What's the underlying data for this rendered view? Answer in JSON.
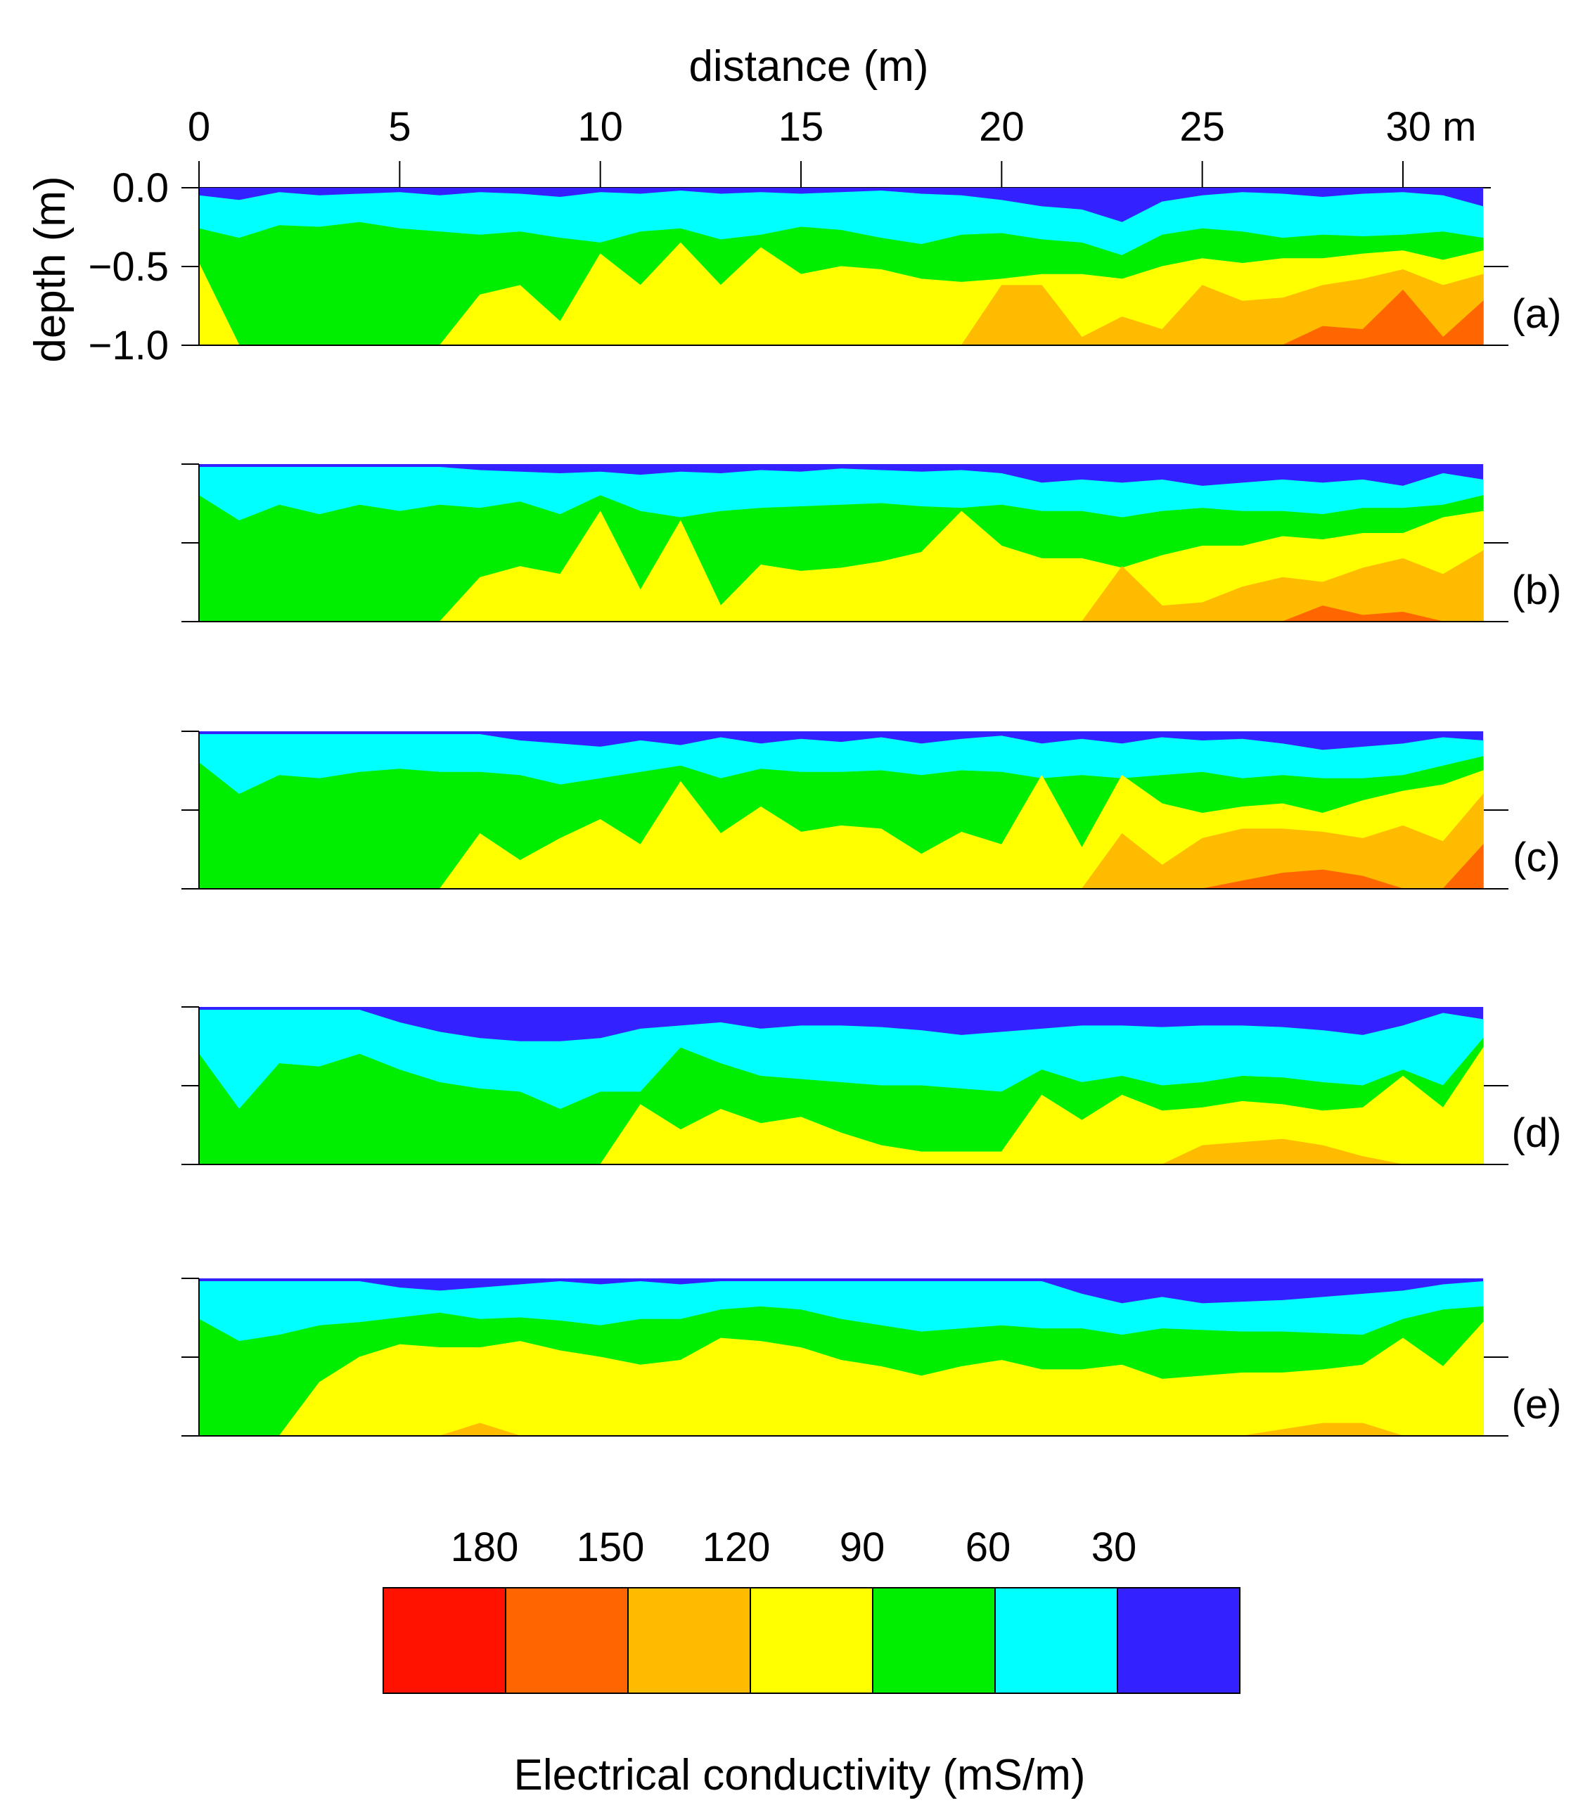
{
  "chart_data": {
    "type": "heatmap",
    "title": "",
    "xlabel": "distance (m)",
    "ylabel": "depth (m)",
    "xlim": [
      0,
      32
    ],
    "ylim": [
      -1.0,
      0.0
    ],
    "x_ticks": [
      0,
      5,
      10,
      15,
      20,
      25,
      30
    ],
    "x_tick_labels": [
      "0",
      "5",
      "10",
      "15",
      "20",
      "25",
      "30 m"
    ],
    "y_ticks": [
      0.0,
      -0.5,
      -1.0
    ],
    "y_tick_labels": [
      "0.0",
      "−0.5",
      "−1.0"
    ],
    "grid": false,
    "colorbar": {
      "label": "Electrical conductivity (mS/m)",
      "tick_labels": [
        "180",
        "150",
        "120",
        "90",
        "60",
        "30"
      ],
      "boundaries": [
        180,
        150,
        120,
        90,
        60,
        30
      ],
      "colors": [
        "#ff1200",
        "#ff6600",
        "#ffbb00",
        "#ffff00",
        "#00ee00",
        "#00ffff",
        "#3322ff"
      ]
    },
    "panels": [
      {
        "label": "(a)",
        "x": [
          0,
          1,
          2,
          3,
          4,
          5,
          6,
          7,
          8,
          9,
          10,
          11,
          12,
          13,
          14,
          15,
          16,
          17,
          18,
          19,
          20,
          21,
          22,
          23,
          24,
          25,
          26,
          27,
          28,
          29,
          30,
          31,
          32
        ],
        "boundaries_depth": {
          "30": [
            -0.05,
            -0.08,
            -0.03,
            -0.05,
            -0.04,
            -0.03,
            -0.05,
            -0.03,
            -0.04,
            -0.06,
            -0.03,
            -0.04,
            -0.02,
            -0.04,
            -0.03,
            -0.04,
            -0.03,
            -0.02,
            -0.04,
            -0.05,
            -0.08,
            -0.12,
            -0.14,
            -0.22,
            -0.09,
            -0.05,
            -0.03,
            -0.04,
            -0.06,
            -0.04,
            -0.03,
            -0.05,
            -0.12
          ],
          "60": [
            -0.26,
            -0.32,
            -0.24,
            -0.25,
            -0.22,
            -0.26,
            -0.28,
            -0.3,
            -0.28,
            -0.32,
            -0.35,
            -0.28,
            -0.26,
            -0.33,
            -0.3,
            -0.25,
            -0.27,
            -0.32,
            -0.36,
            -0.3,
            -0.29,
            -0.33,
            -0.35,
            -0.43,
            -0.3,
            -0.26,
            -0.28,
            -0.32,
            -0.3,
            -0.31,
            -0.3,
            -0.28,
            -0.32
          ],
          "90": [
            -0.48,
            -1.0,
            -1.0,
            -1.0,
            -1.0,
            -1.0,
            -1.0,
            -0.68,
            -0.62,
            -0.85,
            -0.42,
            -0.62,
            -0.35,
            -0.62,
            -0.38,
            -0.55,
            -0.5,
            -0.52,
            -0.58,
            -0.6,
            -0.58,
            -0.55,
            -0.55,
            -0.58,
            -0.5,
            -0.45,
            -0.48,
            -0.45,
            -0.45,
            -0.42,
            -0.4,
            -0.46,
            -0.4
          ],
          "120": [
            -1.0,
            -1.0,
            -1.0,
            -1.0,
            -1.0,
            -1.0,
            -1.0,
            -1.0,
            -1.0,
            -1.0,
            -1.0,
            -1.0,
            -1.0,
            -1.0,
            -1.0,
            -1.0,
            -1.0,
            -1.0,
            -1.0,
            -1.0,
            -0.62,
            -0.62,
            -0.95,
            -0.82,
            -0.9,
            -0.62,
            -0.72,
            -0.7,
            -0.62,
            -0.58,
            -0.52,
            -0.62,
            -0.55
          ],
          "150": [
            -1.0,
            -1.0,
            -1.0,
            -1.0,
            -1.0,
            -1.0,
            -1.0,
            -1.0,
            -1.0,
            -1.0,
            -1.0,
            -1.0,
            -1.0,
            -1.0,
            -1.0,
            -1.0,
            -1.0,
            -1.0,
            -1.0,
            -1.0,
            -1.0,
            -1.0,
            -1.0,
            -1.0,
            -1.0,
            -1.0,
            -1.0,
            -1.0,
            -0.88,
            -0.9,
            -0.65,
            -0.95,
            -0.72
          ]
        }
      },
      {
        "label": "(b)",
        "x": [
          0,
          1,
          2,
          3,
          4,
          5,
          6,
          7,
          8,
          9,
          10,
          11,
          12,
          13,
          14,
          15,
          16,
          17,
          18,
          19,
          20,
          21,
          22,
          23,
          24,
          25,
          26,
          27,
          28,
          29,
          30,
          31,
          32
        ],
        "boundaries_depth": {
          "30": [
            -0.02,
            -0.02,
            -0.02,
            -0.02,
            -0.02,
            -0.02,
            -0.02,
            -0.04,
            -0.05,
            -0.06,
            -0.05,
            -0.07,
            -0.05,
            -0.06,
            -0.04,
            -0.05,
            -0.03,
            -0.04,
            -0.05,
            -0.04,
            -0.06,
            -0.12,
            -0.1,
            -0.12,
            -0.1,
            -0.14,
            -0.12,
            -0.1,
            -0.12,
            -0.1,
            -0.14,
            -0.06,
            -0.1
          ],
          "60": [
            -0.2,
            -0.36,
            -0.26,
            -0.32,
            -0.26,
            -0.3,
            -0.26,
            -0.28,
            -0.24,
            -0.32,
            -0.2,
            -0.3,
            -0.34,
            -0.3,
            -0.28,
            -0.27,
            -0.26,
            -0.25,
            -0.27,
            -0.28,
            -0.26,
            -0.3,
            -0.3,
            -0.34,
            -0.3,
            -0.28,
            -0.3,
            -0.3,
            -0.32,
            -0.28,
            -0.28,
            -0.26,
            -0.2
          ],
          "90": [
            -1.0,
            -1.0,
            -1.0,
            -1.0,
            -1.0,
            -1.0,
            -1.0,
            -0.72,
            -0.65,
            -0.7,
            -0.3,
            -0.8,
            -0.36,
            -0.9,
            -0.64,
            -0.68,
            -0.66,
            -0.62,
            -0.56,
            -0.3,
            -0.52,
            -0.6,
            -0.6,
            -0.66,
            -0.58,
            -0.52,
            -0.52,
            -0.46,
            -0.48,
            -0.44,
            -0.44,
            -0.34,
            -0.3
          ],
          "120": [
            -1.0,
            -1.0,
            -1.0,
            -1.0,
            -1.0,
            -1.0,
            -1.0,
            -1.0,
            -1.0,
            -1.0,
            -1.0,
            -1.0,
            -1.0,
            -1.0,
            -1.0,
            -1.0,
            -1.0,
            -1.0,
            -1.0,
            -1.0,
            -1.0,
            -1.0,
            -1.0,
            -0.65,
            -0.9,
            -0.88,
            -0.78,
            -0.72,
            -0.75,
            -0.66,
            -0.6,
            -0.7,
            -0.55
          ],
          "150": [
            -1.0,
            -1.0,
            -1.0,
            -1.0,
            -1.0,
            -1.0,
            -1.0,
            -1.0,
            -1.0,
            -1.0,
            -1.0,
            -1.0,
            -1.0,
            -1.0,
            -1.0,
            -1.0,
            -1.0,
            -1.0,
            -1.0,
            -1.0,
            -1.0,
            -1.0,
            -1.0,
            -1.0,
            -1.0,
            -1.0,
            -1.0,
            -1.0,
            -0.9,
            -0.96,
            -0.94,
            -1.0,
            -1.0
          ]
        }
      },
      {
        "label": "(c)",
        "x": [
          0,
          1,
          2,
          3,
          4,
          5,
          6,
          7,
          8,
          9,
          10,
          11,
          12,
          13,
          14,
          15,
          16,
          17,
          18,
          19,
          20,
          21,
          22,
          23,
          24,
          25,
          26,
          27,
          28,
          29,
          30,
          31,
          32
        ],
        "boundaries_depth": {
          "30": [
            -0.02,
            -0.02,
            -0.02,
            -0.02,
            -0.02,
            -0.02,
            -0.02,
            -0.02,
            -0.06,
            -0.08,
            -0.1,
            -0.06,
            -0.09,
            -0.04,
            -0.08,
            -0.05,
            -0.07,
            -0.04,
            -0.08,
            -0.05,
            -0.03,
            -0.08,
            -0.05,
            -0.08,
            -0.04,
            -0.06,
            -0.05,
            -0.08,
            -0.12,
            -0.1,
            -0.08,
            -0.04,
            -0.06
          ],
          "60": [
            -0.2,
            -0.4,
            -0.28,
            -0.3,
            -0.26,
            -0.24,
            -0.26,
            -0.26,
            -0.28,
            -0.34,
            -0.3,
            -0.26,
            -0.22,
            -0.3,
            -0.24,
            -0.26,
            -0.26,
            -0.25,
            -0.28,
            -0.25,
            -0.26,
            -0.3,
            -0.28,
            -0.3,
            -0.28,
            -0.26,
            -0.3,
            -0.28,
            -0.3,
            -0.3,
            -0.28,
            -0.22,
            -0.16
          ],
          "90": [
            -1.0,
            -1.0,
            -1.0,
            -1.0,
            -1.0,
            -1.0,
            -1.0,
            -0.65,
            -0.82,
            -0.68,
            -0.56,
            -0.72,
            -0.32,
            -0.65,
            -0.48,
            -0.64,
            -0.6,
            -0.62,
            -0.78,
            -0.64,
            -0.72,
            -0.28,
            -0.74,
            -0.28,
            -0.46,
            -0.52,
            -0.48,
            -0.46,
            -0.52,
            -0.44,
            -0.38,
            -0.34,
            -0.25
          ],
          "120": [
            -1.0,
            -1.0,
            -1.0,
            -1.0,
            -1.0,
            -1.0,
            -1.0,
            -1.0,
            -1.0,
            -1.0,
            -1.0,
            -1.0,
            -1.0,
            -1.0,
            -1.0,
            -1.0,
            -1.0,
            -1.0,
            -1.0,
            -1.0,
            -1.0,
            -1.0,
            -1.0,
            -0.65,
            -0.85,
            -0.68,
            -0.62,
            -0.62,
            -0.64,
            -0.68,
            -0.6,
            -0.7,
            -0.4
          ],
          "150": [
            -1.0,
            -1.0,
            -1.0,
            -1.0,
            -1.0,
            -1.0,
            -1.0,
            -1.0,
            -1.0,
            -1.0,
            -1.0,
            -1.0,
            -1.0,
            -1.0,
            -1.0,
            -1.0,
            -1.0,
            -1.0,
            -1.0,
            -1.0,
            -1.0,
            -1.0,
            -1.0,
            -1.0,
            -1.0,
            -1.0,
            -0.95,
            -0.9,
            -0.88,
            -0.92,
            -1.0,
            -1.0,
            -0.72
          ]
        }
      },
      {
        "label": "(d)",
        "x": [
          0,
          1,
          2,
          3,
          4,
          5,
          6,
          7,
          8,
          9,
          10,
          11,
          12,
          13,
          14,
          15,
          16,
          17,
          18,
          19,
          20,
          21,
          22,
          23,
          24,
          25,
          26,
          27,
          28,
          29,
          30,
          31,
          32
        ],
        "boundaries_depth": {
          "30": [
            -0.02,
            -0.02,
            -0.02,
            -0.02,
            -0.02,
            -0.1,
            -0.16,
            -0.2,
            -0.22,
            -0.22,
            -0.2,
            -0.14,
            -0.12,
            -0.1,
            -0.14,
            -0.12,
            -0.12,
            -0.13,
            -0.15,
            -0.18,
            -0.16,
            -0.14,
            -0.12,
            -0.12,
            -0.13,
            -0.12,
            -0.12,
            -0.13,
            -0.15,
            -0.18,
            -0.12,
            -0.04,
            -0.08
          ],
          "60": [
            -0.3,
            -0.65,
            -0.36,
            -0.38,
            -0.3,
            -0.4,
            -0.48,
            -0.52,
            -0.54,
            -0.65,
            -0.54,
            -0.54,
            -0.26,
            -0.36,
            -0.44,
            -0.46,
            -0.48,
            -0.5,
            -0.5,
            -0.52,
            -0.54,
            -0.4,
            -0.48,
            -0.44,
            -0.5,
            -0.48,
            -0.44,
            -0.45,
            -0.48,
            -0.5,
            -0.4,
            -0.5,
            -0.2
          ],
          "90": [
            -1.0,
            -1.0,
            -1.0,
            -1.0,
            -1.0,
            -1.0,
            -1.0,
            -1.0,
            -1.0,
            -1.0,
            -1.0,
            -0.62,
            -0.78,
            -0.65,
            -0.74,
            -0.7,
            -0.8,
            -0.88,
            -0.92,
            -0.92,
            -0.92,
            -0.56,
            -0.72,
            -0.56,
            -0.66,
            -0.64,
            -0.6,
            -0.62,
            -0.66,
            -0.64,
            -0.44,
            -0.64,
            -0.26
          ],
          "120": [
            -1.0,
            -1.0,
            -1.0,
            -1.0,
            -1.0,
            -1.0,
            -1.0,
            -1.0,
            -1.0,
            -1.0,
            -1.0,
            -1.0,
            -1.0,
            -1.0,
            -1.0,
            -1.0,
            -1.0,
            -1.0,
            -1.0,
            -1.0,
            -1.0,
            -1.0,
            -1.0,
            -1.0,
            -1.0,
            -0.88,
            -0.86,
            -0.84,
            -0.88,
            -0.95,
            -1.0,
            -1.0,
            -1.0
          ]
        }
      },
      {
        "label": "(e)",
        "x": [
          0,
          1,
          2,
          3,
          4,
          5,
          6,
          7,
          8,
          9,
          10,
          11,
          12,
          13,
          14,
          15,
          16,
          17,
          18,
          19,
          20,
          21,
          22,
          23,
          24,
          25,
          26,
          27,
          28,
          29,
          30,
          31,
          32
        ],
        "boundaries_depth": {
          "30": [
            -0.02,
            -0.02,
            -0.02,
            -0.02,
            -0.02,
            -0.06,
            -0.08,
            -0.06,
            -0.04,
            -0.02,
            -0.04,
            -0.02,
            -0.04,
            -0.02,
            -0.02,
            -0.02,
            -0.02,
            -0.02,
            -0.02,
            -0.02,
            -0.02,
            -0.02,
            -0.1,
            -0.16,
            -0.12,
            -0.16,
            -0.15,
            -0.14,
            -0.12,
            -0.1,
            -0.08,
            -0.04,
            -0.02
          ],
          "60": [
            -0.26,
            -0.4,
            -0.36,
            -0.3,
            -0.28,
            -0.25,
            -0.22,
            -0.26,
            -0.25,
            -0.27,
            -0.3,
            -0.26,
            -0.26,
            -0.2,
            -0.18,
            -0.2,
            -0.26,
            -0.3,
            -0.34,
            -0.32,
            -0.3,
            -0.32,
            -0.32,
            -0.36,
            -0.32,
            -0.33,
            -0.34,
            -0.34,
            -0.35,
            -0.36,
            -0.26,
            -0.2,
            -0.18
          ],
          "90": [
            -1.0,
            -1.0,
            -1.0,
            -0.66,
            -0.5,
            -0.42,
            -0.44,
            -0.44,
            -0.4,
            -0.46,
            -0.5,
            -0.55,
            -0.52,
            -0.38,
            -0.4,
            -0.44,
            -0.52,
            -0.56,
            -0.62,
            -0.56,
            -0.52,
            -0.58,
            -0.58,
            -0.55,
            -0.64,
            -0.62,
            -0.6,
            -0.6,
            -0.58,
            -0.55,
            -0.38,
            -0.56,
            -0.28
          ],
          "120": [
            -1.0,
            -1.0,
            -1.0,
            -1.0,
            -1.0,
            -1.0,
            -1.0,
            -0.92,
            -1.0,
            -1.0,
            -1.0,
            -1.0,
            -1.0,
            -1.0,
            -1.0,
            -1.0,
            -1.0,
            -1.0,
            -1.0,
            -1.0,
            -1.0,
            -1.0,
            -1.0,
            -1.0,
            -1.0,
            -1.0,
            -1.0,
            -0.96,
            -0.92,
            -0.92,
            -1.0,
            -1.0,
            -1.0
          ]
        }
      }
    ]
  }
}
